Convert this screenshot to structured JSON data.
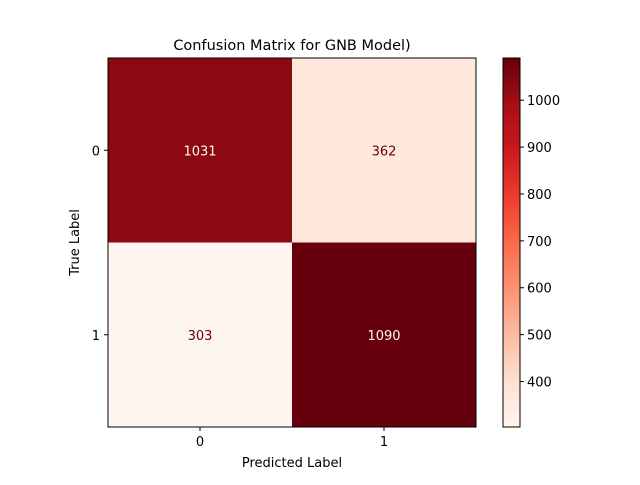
{
  "chart_data": {
    "type": "heatmap",
    "title": "Confusion Matrix for GNB Model)",
    "xlabel": "Predicted Label",
    "ylabel": "True Label",
    "x_categories": [
      "0",
      "1"
    ],
    "y_categories": [
      "0",
      "1"
    ],
    "values": [
      [
        1031,
        362
      ],
      [
        303,
        1090
      ]
    ],
    "colormap": "Reds",
    "color_range": [
      303,
      1090
    ],
    "colorbar": {
      "ticks": [
        400,
        500,
        600,
        700,
        800,
        900,
        1000
      ],
      "tick_labels": [
        "400",
        "500",
        "600",
        "700",
        "800",
        "900",
        "1000"
      ]
    },
    "colors": {
      "low": "#fff5f0",
      "high": "#67000d",
      "text_on_light": "#67000d",
      "text_on_dark": "#fff5f0"
    },
    "grid": false,
    "legend": "colorbar-right"
  }
}
